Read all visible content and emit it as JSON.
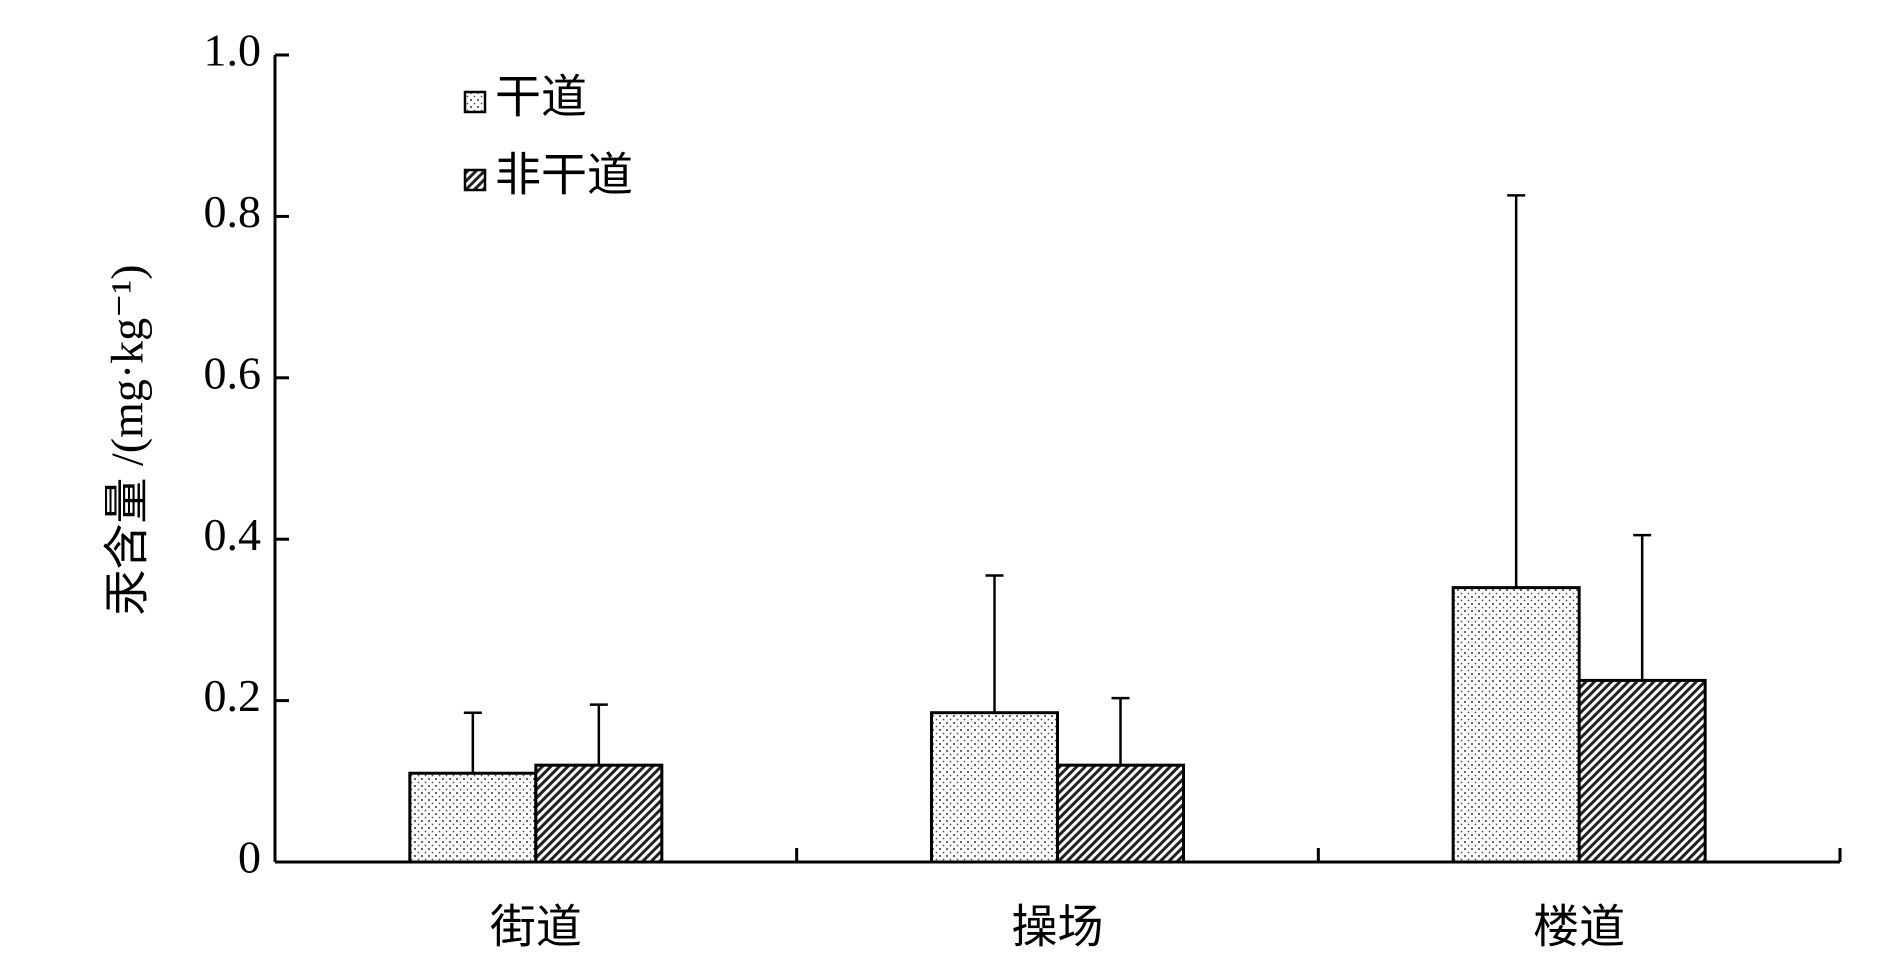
{
  "chart_data": {
    "type": "bar",
    "y_label": "汞含量 /(mg·kg⁻¹)",
    "categories": [
      "街道",
      "操场",
      "楼道"
    ],
    "series": [
      {
        "name": "干道",
        "color": "#ffffff",
        "pattern": "dots",
        "values": [
          0.11,
          0.185,
          0.34
        ],
        "errors": [
          0.075,
          0.17,
          0.486
        ]
      },
      {
        "name": "非干道",
        "color": "#ffffff",
        "pattern": "hatch",
        "values": [
          0.12,
          0.12,
          0.225
        ],
        "errors": [
          0.075,
          0.083,
          0.18
        ]
      }
    ],
    "ylim": [
      0,
      1
    ],
    "yticks": [
      0,
      0.2,
      0.4,
      0.6,
      0.8,
      {
        "value": 1,
        "label": "1.0"
      }
    ],
    "grid": false,
    "legend": "upper left"
  }
}
